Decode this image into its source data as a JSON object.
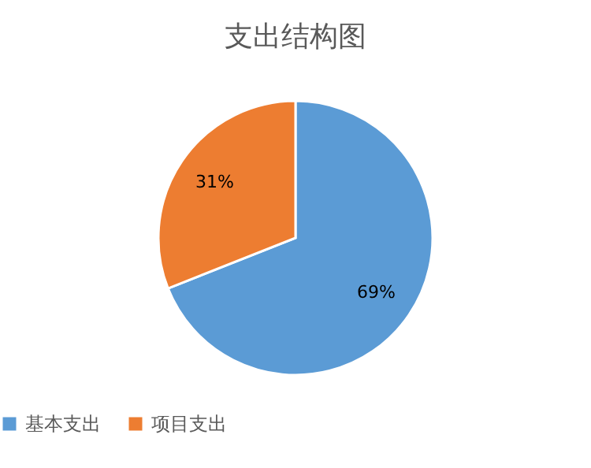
{
  "chart_data": {
    "type": "pie",
    "title": "支出结构图",
    "categories": [
      "基本支出",
      "项目支出"
    ],
    "values": [
      69,
      31
    ],
    "colors": [
      "#5b9bd5",
      "#ed7d31"
    ],
    "value_labels": [
      "69%",
      "31%"
    ],
    "legend": "bottom"
  }
}
